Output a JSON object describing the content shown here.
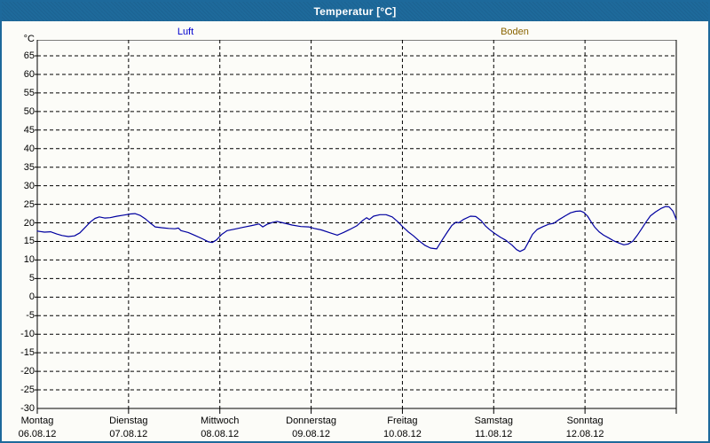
{
  "window": {
    "title": "Temperatur [°C]"
  },
  "legend": {
    "luft": {
      "label": "Luft",
      "color": "#0000ce"
    },
    "boden": {
      "label": "Boden",
      "color": "#8a6400"
    }
  },
  "colors": {
    "titlebar_bg": "#1e6a9b",
    "frame_border": "#1d699b",
    "grid": "#000000",
    "curve_luft": "#0000a0"
  },
  "chart_data": {
    "type": "line",
    "title": "Temperatur [°C]",
    "ylabel": "°C",
    "grid": "dashed",
    "legend_position": "top",
    "y_axis": {
      "min": -30,
      "max": 69.3,
      "tick_min": -30,
      "tick_max": 65,
      "tick_step": 5
    },
    "x_axis": {
      "unit": "hours",
      "range_hours": [
        0,
        168
      ],
      "days": [
        {
          "name": "Montag",
          "date": "06.08.12"
        },
        {
          "name": "Dienstag",
          "date": "07.08.12"
        },
        {
          "name": "Mittwoch",
          "date": "08.08.12"
        },
        {
          "name": "Donnerstag",
          "date": "09.08.12"
        },
        {
          "name": "Freitag",
          "date": "10.08.12"
        },
        {
          "name": "Samstag",
          "date": "11.08.12"
        },
        {
          "name": "Sonntag",
          "date": "12.08.12"
        }
      ]
    },
    "series": [
      {
        "name": "Luft",
        "color": "#0000a0",
        "points": [
          [
            0.0,
            17.8
          ],
          [
            1.9,
            17.5
          ],
          [
            3.5,
            17.6
          ],
          [
            5.1,
            17.0
          ],
          [
            6.5,
            16.6
          ],
          [
            8.2,
            16.3
          ],
          [
            9.8,
            16.5
          ],
          [
            11.2,
            17.3
          ],
          [
            12.8,
            19.0
          ],
          [
            14.0,
            20.3
          ],
          [
            15.2,
            21.2
          ],
          [
            16.3,
            21.6
          ],
          [
            17.7,
            21.3
          ],
          [
            19.1,
            21.4
          ],
          [
            21.0,
            21.8
          ],
          [
            22.9,
            22.1
          ],
          [
            24.5,
            22.4
          ],
          [
            25.7,
            22.5
          ],
          [
            27.1,
            22.0
          ],
          [
            28.5,
            21.0
          ],
          [
            29.9,
            19.8
          ],
          [
            31.0,
            18.9
          ],
          [
            32.7,
            18.7
          ],
          [
            34.5,
            18.5
          ],
          [
            36.2,
            18.4
          ],
          [
            37.1,
            18.6
          ],
          [
            37.8,
            17.9
          ],
          [
            39.7,
            17.4
          ],
          [
            41.5,
            16.6
          ],
          [
            43.4,
            15.7
          ],
          [
            45.0,
            14.9
          ],
          [
            46.0,
            14.7
          ],
          [
            47.1,
            15.4
          ],
          [
            48.5,
            16.9
          ],
          [
            49.9,
            17.9
          ],
          [
            51.8,
            18.3
          ],
          [
            54.1,
            18.8
          ],
          [
            56.5,
            19.3
          ],
          [
            58.3,
            19.7
          ],
          [
            59.3,
            18.9
          ],
          [
            60.4,
            19.6
          ],
          [
            61.8,
            20.1
          ],
          [
            63.0,
            20.4
          ],
          [
            64.6,
            20.0
          ],
          [
            67.0,
            19.4
          ],
          [
            69.3,
            19.0
          ],
          [
            71.4,
            18.9
          ],
          [
            72.8,
            18.5
          ],
          [
            74.7,
            18.1
          ],
          [
            77.0,
            17.3
          ],
          [
            78.9,
            16.7
          ],
          [
            80.5,
            17.4
          ],
          [
            82.1,
            18.2
          ],
          [
            84.0,
            19.2
          ],
          [
            85.4,
            20.5
          ],
          [
            86.6,
            21.4
          ],
          [
            87.3,
            20.9
          ],
          [
            88.4,
            21.8
          ],
          [
            90.1,
            22.2
          ],
          [
            91.7,
            22.2
          ],
          [
            93.3,
            21.6
          ],
          [
            94.7,
            20.4
          ],
          [
            96.1,
            18.9
          ],
          [
            97.5,
            17.6
          ],
          [
            98.9,
            16.5
          ],
          [
            100.3,
            15.2
          ],
          [
            102.0,
            13.9
          ],
          [
            103.4,
            13.2
          ],
          [
            105.0,
            13.0
          ],
          [
            106.4,
            15.3
          ],
          [
            107.8,
            17.5
          ],
          [
            109.0,
            19.3
          ],
          [
            110.1,
            20.2
          ],
          [
            110.8,
            20.0
          ],
          [
            112.0,
            20.9
          ],
          [
            113.9,
            21.8
          ],
          [
            115.3,
            21.7
          ],
          [
            116.7,
            20.6
          ],
          [
            117.8,
            19.2
          ],
          [
            118.8,
            18.3
          ],
          [
            120.2,
            17.2
          ],
          [
            121.8,
            16.1
          ],
          [
            123.2,
            15.3
          ],
          [
            124.8,
            14.0
          ],
          [
            126.0,
            12.8
          ],
          [
            126.9,
            12.3
          ],
          [
            128.1,
            12.9
          ],
          [
            129.0,
            14.6
          ],
          [
            130.2,
            16.9
          ],
          [
            131.4,
            18.2
          ],
          [
            133.0,
            19.0
          ],
          [
            134.4,
            19.6
          ],
          [
            135.8,
            19.9
          ],
          [
            137.2,
            20.9
          ],
          [
            138.8,
            21.9
          ],
          [
            140.2,
            22.7
          ],
          [
            141.6,
            23.1
          ],
          [
            142.8,
            23.2
          ],
          [
            143.7,
            22.8
          ],
          [
            144.7,
            21.8
          ],
          [
            145.6,
            20.3
          ],
          [
            146.5,
            18.9
          ],
          [
            147.7,
            17.6
          ],
          [
            148.9,
            16.7
          ],
          [
            150.3,
            15.9
          ],
          [
            151.7,
            15.1
          ],
          [
            153.1,
            14.5
          ],
          [
            154.2,
            14.1
          ],
          [
            155.4,
            14.3
          ],
          [
            156.6,
            15.1
          ],
          [
            157.7,
            16.6
          ],
          [
            158.9,
            18.4
          ],
          [
            160.1,
            20.3
          ],
          [
            161.2,
            21.9
          ],
          [
            162.6,
            23.0
          ],
          [
            164.0,
            23.9
          ],
          [
            165.2,
            24.4
          ],
          [
            166.1,
            24.3
          ],
          [
            167.1,
            23.2
          ],
          [
            167.5,
            22.2
          ],
          [
            168.0,
            20.9
          ]
        ]
      },
      {
        "name": "Boden",
        "color": "#8a6400",
        "points": []
      }
    ]
  }
}
